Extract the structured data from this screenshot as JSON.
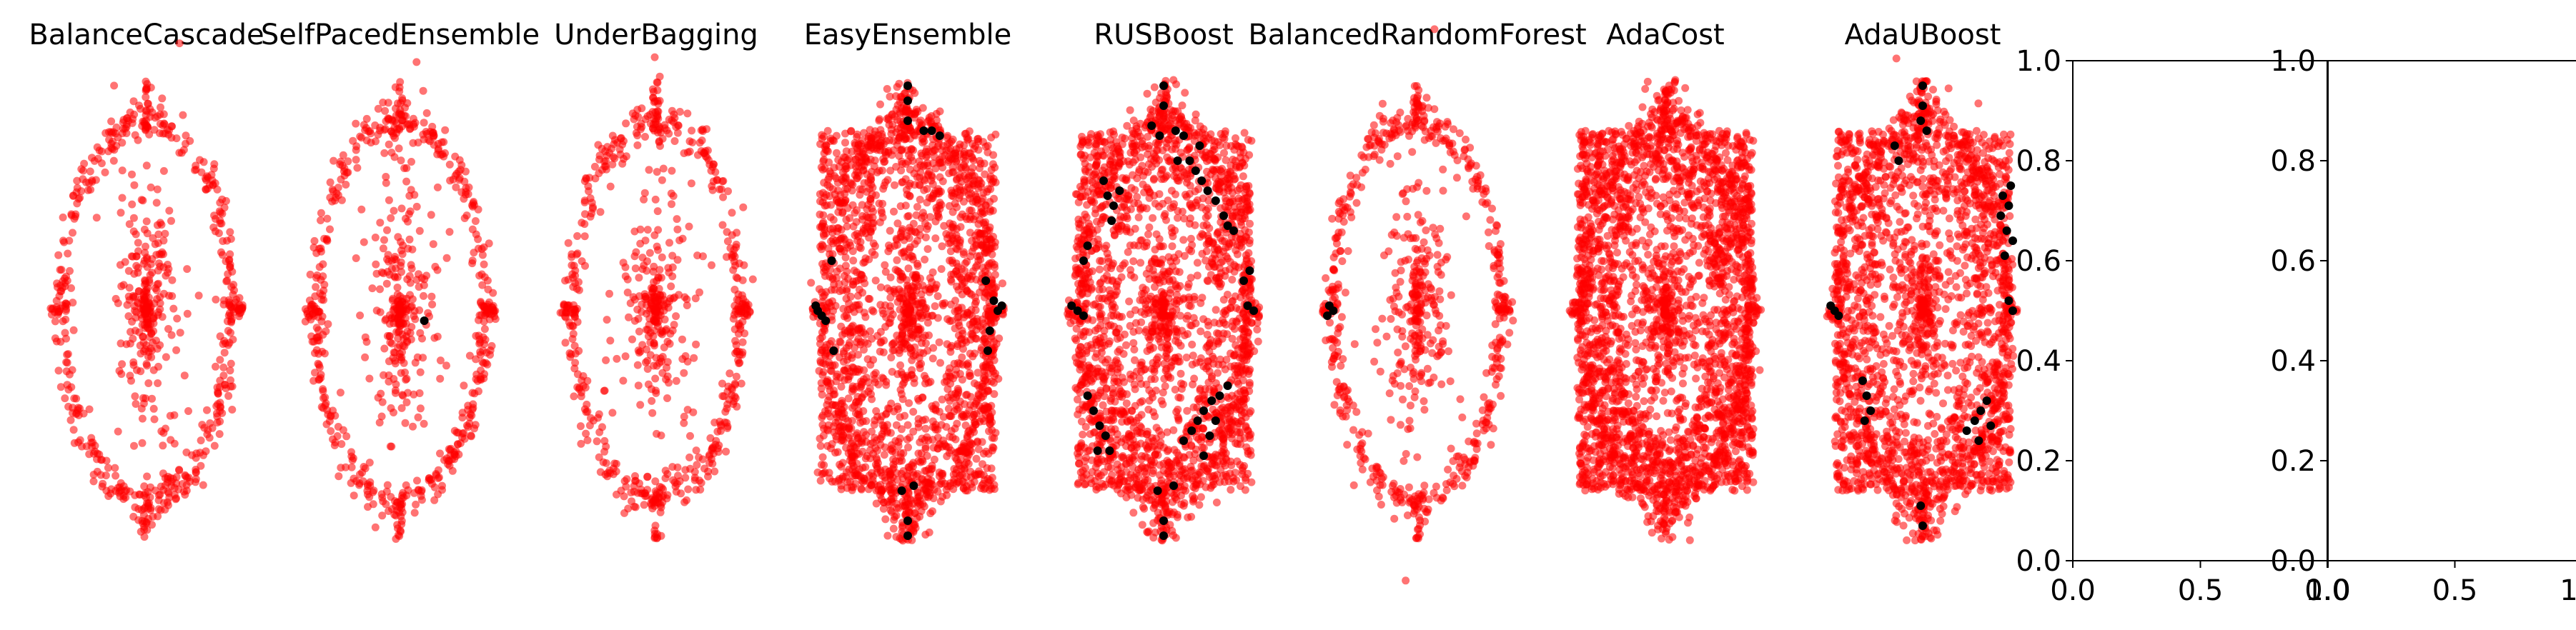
{
  "chart_data": [
    {
      "type": "scatter",
      "title": "BalanceCascade",
      "model": "ellipse",
      "fill": 0,
      "black_points": []
    },
    {
      "type": "scatter",
      "title": "SelfPacedEnsemble",
      "model": "ellipse",
      "fill": 0,
      "black_points": [
        [
          0.62,
          0.48
        ]
      ]
    },
    {
      "type": "scatter",
      "title": "UnderBagging",
      "model": "ellipse",
      "fill": 0,
      "black_points": []
    },
    {
      "type": "scatter",
      "title": "EasyEnsemble",
      "model": "ellipse",
      "fill": 1,
      "black_points": [
        [
          0.5,
          0.95
        ],
        [
          0.5,
          0.92
        ],
        [
          0.5,
          0.88
        ],
        [
          0.58,
          0.86
        ],
        [
          0.62,
          0.86
        ],
        [
          0.66,
          0.85
        ],
        [
          0.04,
          0.51
        ],
        [
          0.05,
          0.5
        ],
        [
          0.07,
          0.49
        ],
        [
          0.09,
          0.48
        ],
        [
          0.12,
          0.6
        ],
        [
          0.13,
          0.42
        ],
        [
          0.93,
          0.52
        ],
        [
          0.95,
          0.5
        ],
        [
          0.97,
          0.51
        ],
        [
          0.91,
          0.46
        ],
        [
          0.89,
          0.56
        ],
        [
          0.9,
          0.42
        ],
        [
          0.5,
          0.08
        ],
        [
          0.5,
          0.05
        ],
        [
          0.47,
          0.14
        ],
        [
          0.53,
          0.15
        ]
      ]
    },
    {
      "type": "scatter",
      "title": "RUSBoost",
      "model": "ellipse",
      "fill": 1,
      "black_points": [
        [
          0.5,
          0.95
        ],
        [
          0.5,
          0.91
        ],
        [
          0.44,
          0.87
        ],
        [
          0.48,
          0.85
        ],
        [
          0.56,
          0.86
        ],
        [
          0.6,
          0.85
        ],
        [
          0.57,
          0.8
        ],
        [
          0.63,
          0.8
        ],
        [
          0.66,
          0.78
        ],
        [
          0.69,
          0.76
        ],
        [
          0.72,
          0.74
        ],
        [
          0.76,
          0.72
        ],
        [
          0.8,
          0.69
        ],
        [
          0.82,
          0.67
        ],
        [
          0.85,
          0.66
        ],
        [
          0.68,
          0.83
        ],
        [
          0.2,
          0.76
        ],
        [
          0.22,
          0.73
        ],
        [
          0.25,
          0.71
        ],
        [
          0.28,
          0.74
        ],
        [
          0.24,
          0.68
        ],
        [
          0.04,
          0.51
        ],
        [
          0.07,
          0.5
        ],
        [
          0.1,
          0.49
        ],
        [
          0.92,
          0.51
        ],
        [
          0.95,
          0.5
        ],
        [
          0.1,
          0.6
        ],
        [
          0.12,
          0.63
        ],
        [
          0.9,
          0.56
        ],
        [
          0.93,
          0.58
        ],
        [
          0.12,
          0.33
        ],
        [
          0.15,
          0.3
        ],
        [
          0.18,
          0.27
        ],
        [
          0.21,
          0.25
        ],
        [
          0.23,
          0.22
        ],
        [
          0.17,
          0.22
        ],
        [
          0.6,
          0.24
        ],
        [
          0.64,
          0.26
        ],
        [
          0.67,
          0.28
        ],
        [
          0.7,
          0.3
        ],
        [
          0.74,
          0.32
        ],
        [
          0.78,
          0.33
        ],
        [
          0.82,
          0.35
        ],
        [
          0.73,
          0.25
        ],
        [
          0.76,
          0.28
        ],
        [
          0.7,
          0.21
        ],
        [
          0.5,
          0.08
        ],
        [
          0.5,
          0.05
        ],
        [
          0.47,
          0.14
        ],
        [
          0.55,
          0.15
        ]
      ]
    },
    {
      "type": "scatter",
      "title": "BalancedRandomForest",
      "model": "ellipse",
      "fill": 0,
      "black_points": [
        [
          0.06,
          0.51
        ],
        [
          0.08,
          0.5
        ],
        [
          0.05,
          0.49
        ]
      ]
    },
    {
      "type": "scatter",
      "title": "AdaCost",
      "model": "ellipse",
      "fill": 2,
      "black_points": []
    },
    {
      "type": "scatter",
      "title": "AdaUBoost",
      "model": "ellipse",
      "fill": 1,
      "black_points": [
        [
          0.5,
          0.95
        ],
        [
          0.5,
          0.91
        ],
        [
          0.49,
          0.88
        ],
        [
          0.52,
          0.86
        ],
        [
          0.36,
          0.83
        ],
        [
          0.38,
          0.8
        ],
        [
          0.04,
          0.51
        ],
        [
          0.06,
          0.5
        ],
        [
          0.08,
          0.49
        ],
        [
          0.9,
          0.73
        ],
        [
          0.93,
          0.71
        ],
        [
          0.89,
          0.69
        ],
        [
          0.92,
          0.66
        ],
        [
          0.95,
          0.64
        ],
        [
          0.91,
          0.61
        ],
        [
          0.94,
          0.75
        ],
        [
          0.93,
          0.52
        ],
        [
          0.95,
          0.5
        ],
        [
          0.2,
          0.36
        ],
        [
          0.22,
          0.33
        ],
        [
          0.24,
          0.3
        ],
        [
          0.21,
          0.28
        ],
        [
          0.72,
          0.26
        ],
        [
          0.76,
          0.28
        ],
        [
          0.79,
          0.3
        ],
        [
          0.82,
          0.32
        ],
        [
          0.78,
          0.24
        ],
        [
          0.84,
          0.27
        ],
        [
          0.5,
          0.07
        ],
        [
          0.49,
          0.11
        ]
      ]
    },
    {
      "type": "scatter",
      "title": "",
      "empty": true,
      "xlim": [
        0.0,
        1.0
      ],
      "ylim": [
        0.0,
        1.0
      ],
      "xticks": [
        "0.0",
        "0.5",
        "1.0"
      ],
      "yticks": [
        "0.0",
        "0.2",
        "0.4",
        "0.6",
        "0.8",
        "1.0"
      ]
    },
    {
      "type": "scatter",
      "title": "",
      "empty": true,
      "xlim": [
        0.0,
        1.0
      ],
      "ylim": [
        0.0,
        1.0
      ],
      "xticks": [
        "0.0",
        "0.5",
        "1.0"
      ],
      "yticks": [
        "0.0",
        "0.2",
        "0.4",
        "0.6",
        "0.8",
        "1.0"
      ]
    }
  ],
  "colors": {
    "majority": "#ff0000",
    "minority": "#000000",
    "axis": "#000000"
  }
}
